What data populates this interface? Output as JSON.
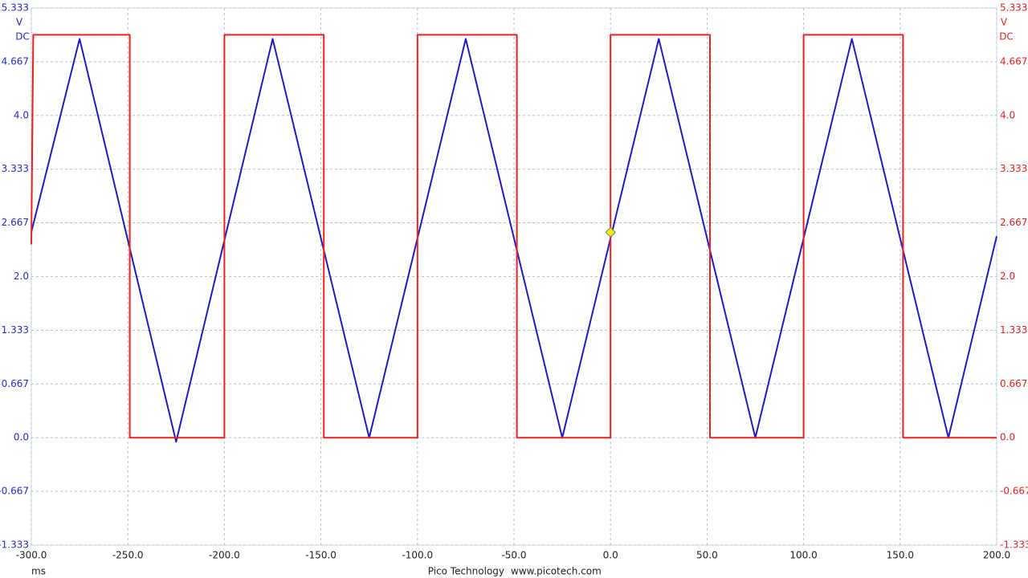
{
  "chart_data": {
    "type": "line",
    "x_unit": "ms",
    "y_unit": "V",
    "y_coupling": "DC",
    "y2_unit": "V",
    "y2_coupling": "DC",
    "brand": "Pico Technology",
    "website": "www.picotech.com",
    "grid": true,
    "xlim": [
      -300,
      200
    ],
    "xticks": [
      {
        "value": -300,
        "label": "-300.0"
      },
      {
        "value": -250,
        "label": "-250.0"
      },
      {
        "value": -200,
        "label": "-200.0"
      },
      {
        "value": -150,
        "label": "-150.0"
      },
      {
        "value": -100,
        "label": "-100.0"
      },
      {
        "value": -50,
        "label": "-50.0"
      },
      {
        "value": 0,
        "label": "0.0"
      },
      {
        "value": 50,
        "label": "50.0"
      },
      {
        "value": 100,
        "label": "100.0"
      },
      {
        "value": 150,
        "label": "150.0"
      },
      {
        "value": 200,
        "label": "200.0"
      }
    ],
    "ylim": [
      -1.333,
      5.333
    ],
    "yticks": [
      5.333,
      4.667,
      {
        "value": 4,
        "label": "4.0"
      },
      3.333,
      2.667,
      {
        "value": 2,
        "label": "2.0"
      },
      1.333,
      0.667,
      {
        "value": 0,
        "label": "0.0"
      },
      -0.667,
      -1.333
    ],
    "y2lim": [
      -1.333,
      5.333
    ],
    "y2ticks": [
      5.333,
      4.667,
      {
        "value": 4,
        "label": "4.0"
      },
      3.333,
      2.667,
      {
        "value": 2,
        "label": "2.0"
      },
      1.333,
      0.667,
      {
        "value": 0,
        "label": "0.0"
      },
      -0.667,
      -1.333
    ],
    "y_color": "#2a2ad0",
    "y2_color": "#e82020",
    "series": [
      {
        "color": "#1c1cc8",
        "x": [
          -300,
          -275,
          -225,
          -175,
          -125,
          -75,
          -25,
          25,
          75,
          125,
          175,
          200
        ],
        "values": [
          2.55,
          4.95,
          -0.05,
          4.95,
          0,
          4.95,
          0,
          4.95,
          0,
          4.95,
          0,
          2.5
        ]
      },
      {
        "color": "#ee2020",
        "axis": "y2",
        "x": [
          -300,
          -299,
          -249,
          -249,
          -200,
          -200,
          -148.5,
          -148.5,
          -100,
          -100,
          -48.5,
          -48.5,
          0,
          0,
          51.5,
          51.5,
          100,
          100,
          151.5,
          151.5,
          200
        ],
        "values": [
          2.4,
          5.0,
          5.0,
          0,
          0,
          5.0,
          5.0,
          0,
          0,
          5.0,
          5.0,
          0,
          0,
          5.0,
          5.0,
          0,
          0,
          5.0,
          5.0,
          0,
          0
        ]
      }
    ],
    "trigger": {
      "x": 0,
      "y": 2.55,
      "color": "#f4f000"
    }
  }
}
